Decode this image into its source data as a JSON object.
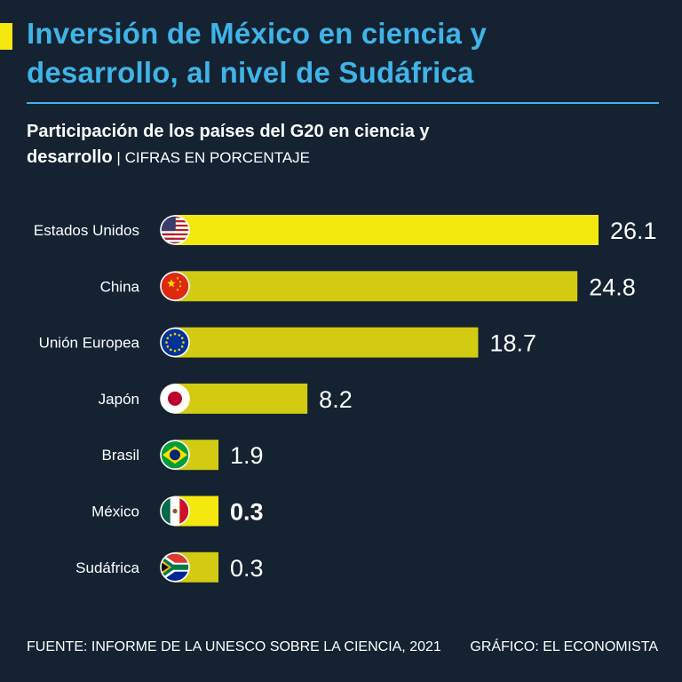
{
  "header": {
    "title_line1": "Inversión de México en ciencia y",
    "title_line2": "desarrollo, al nivel de Sudáfrica",
    "subtitle_line1": "Participación de los países del G20 en ciencia y",
    "subtitle_line2": "desarrollo",
    "subtitle_unit": " | CIFRAS EN PORCENTAJE"
  },
  "colors": {
    "background": "#142231",
    "title": "#3fb4e8",
    "bar_highlight": "#f5e80f",
    "bar_default": "#d2cb12",
    "text": "#ffffff"
  },
  "chart_data": {
    "type": "bar",
    "orientation": "horizontal",
    "categories": [
      "Estados Unidos",
      "China",
      "Unión Europea",
      "Japón",
      "Brasil",
      "México",
      "Sudáfrica"
    ],
    "values": [
      26.1,
      24.8,
      18.7,
      8.2,
      1.9,
      0.3,
      0.3
    ],
    "value_labels": [
      "26.1",
      "24.8",
      "18.7",
      "8.2",
      "1.9",
      "0.3",
      "0.3"
    ],
    "flags": [
      "usa-flag-icon",
      "china-flag-icon",
      "eu-flag-icon",
      "japan-flag-icon",
      "brazil-flag-icon",
      "mexico-flag-icon",
      "south-africa-flag-icon"
    ],
    "highlighted": [
      "Estados Unidos",
      "México"
    ],
    "emphasized_label": "México",
    "xlim": [
      0,
      26.1
    ],
    "grid": false,
    "legend": "none",
    "title": "Participación de los países del G20 en ciencia y desarrollo",
    "unit": "CIFRAS EN PORCENTAJE"
  },
  "footer": {
    "source": "FUENTE: INFORME DE LA UNESCO SOBRE LA CIENCIA, 2021",
    "credit": "GRÁFICO: EL ECONOMISTA"
  }
}
